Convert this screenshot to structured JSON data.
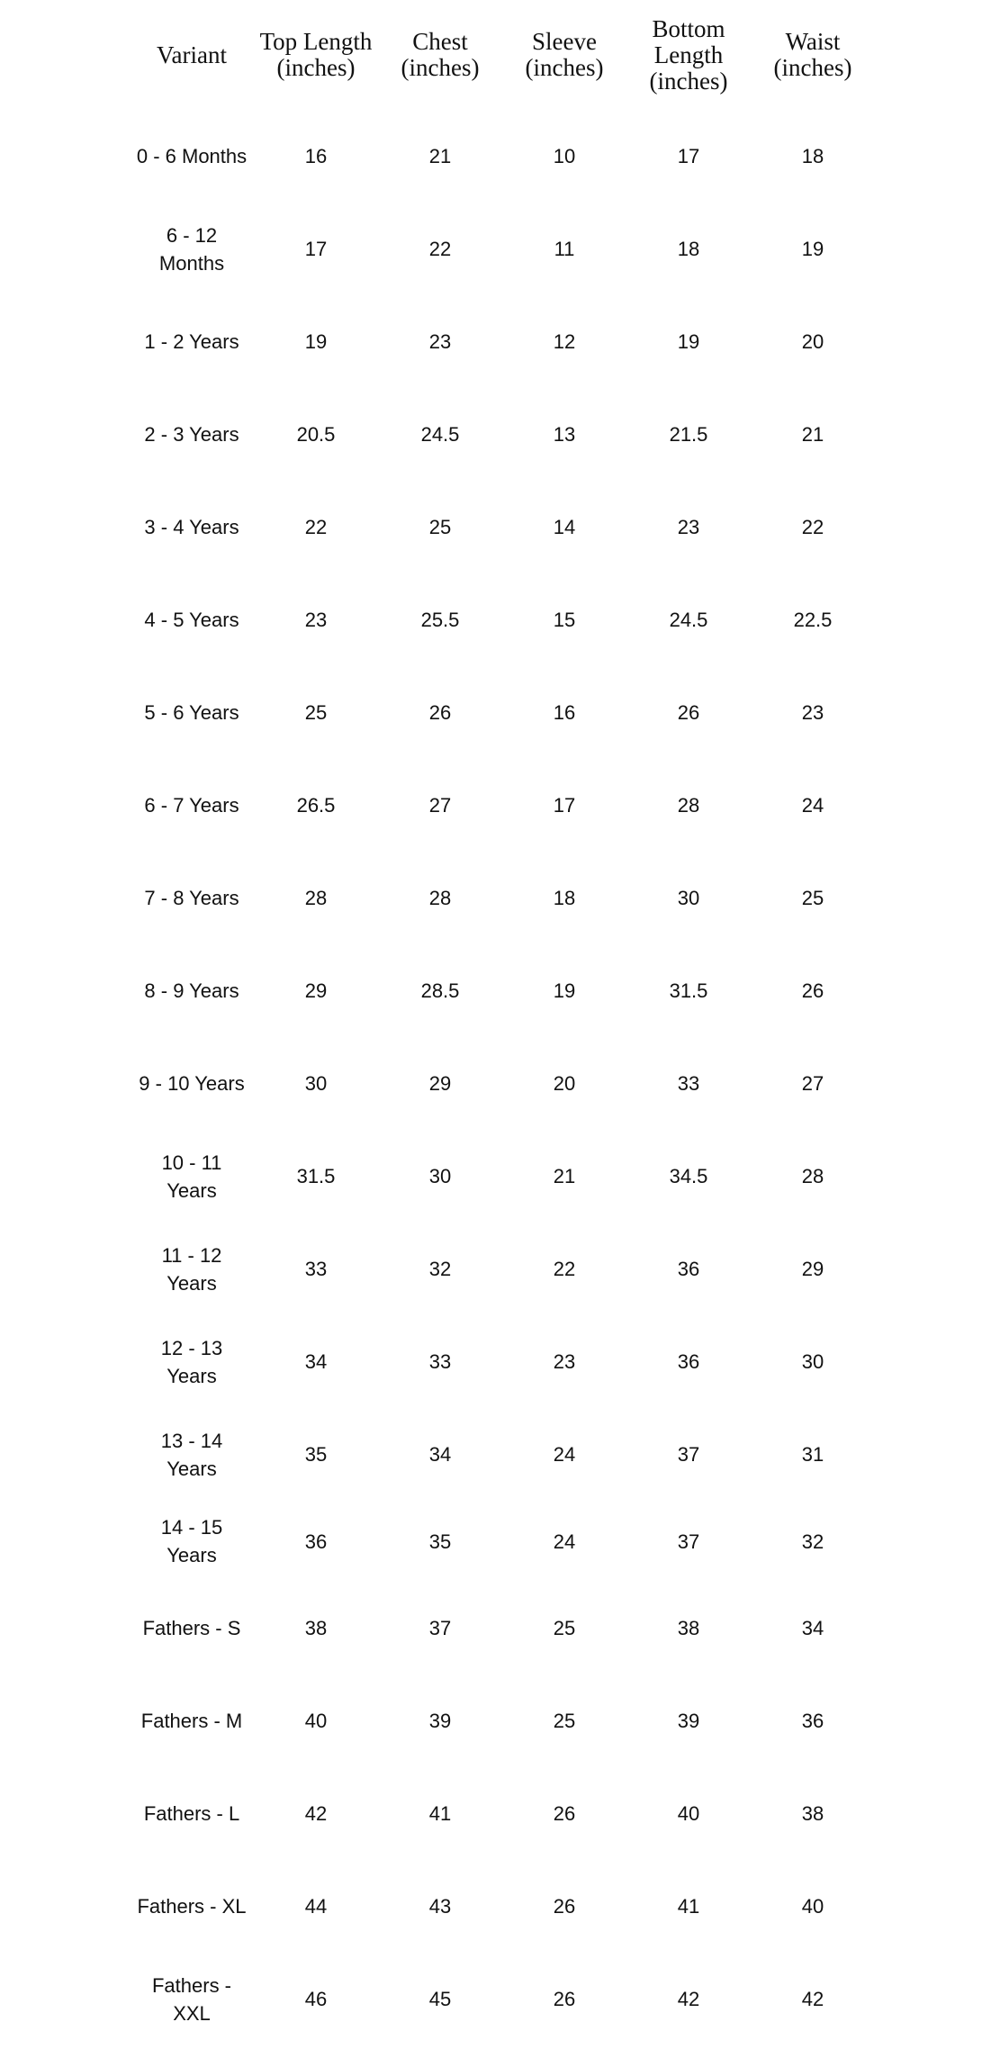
{
  "header_color": "#84d67b",
  "columns": [
    "Variant",
    "Top Length (inches)",
    "Chest (inches)",
    "Sleeve (inches)",
    "Bottom Length (inches)",
    "Waist (inches)"
  ],
  "rows": [
    [
      "0 - 6 Months",
      "16",
      "21",
      "10",
      "17",
      "18"
    ],
    [
      "6 - 12 Months",
      "17",
      "22",
      "11",
      "18",
      "19"
    ],
    [
      "1 - 2 Years",
      "19",
      "23",
      "12",
      "19",
      "20"
    ],
    [
      "2 - 3 Years",
      "20.5",
      "24.5",
      "13",
      "21.5",
      "21"
    ],
    [
      "3 - 4 Years",
      "22",
      "25",
      "14",
      "23",
      "22"
    ],
    [
      "4 - 5 Years",
      "23",
      "25.5",
      "15",
      "24.5",
      "22.5"
    ],
    [
      "5 - 6 Years",
      "25",
      "26",
      "16",
      "26",
      "23"
    ],
    [
      "6 - 7 Years",
      "26.5",
      "27",
      "17",
      "28",
      "24"
    ],
    [
      "7 - 8 Years",
      "28",
      "28",
      "18",
      "30",
      "25"
    ],
    [
      "8 - 9 Years",
      "29",
      "28.5",
      "19",
      "31.5",
      "26"
    ],
    [
      "9 - 10 Years",
      "30",
      "29",
      "20",
      "33",
      "27"
    ],
    [
      "10 - 11 Years",
      "31.5",
      "30",
      "21",
      "34.5",
      "28"
    ],
    [
      "11 - 12 Years",
      "33",
      "32",
      "22",
      "36",
      "29"
    ],
    [
      "12 - 13 Years",
      "34",
      "33",
      "23",
      "36",
      "30"
    ],
    [
      "13 - 14 Years",
      "35",
      "34",
      "24",
      "37",
      "31"
    ],
    [
      "14 - 15 Years",
      "36",
      "35",
      "24",
      "37",
      "32"
    ],
    [
      "Fathers - S",
      "38",
      "37",
      "25",
      "38",
      "34"
    ],
    [
      "Fathers - M",
      "40",
      "39",
      "25",
      "39",
      "36"
    ],
    [
      "Fathers - L",
      "42",
      "41",
      "26",
      "40",
      "38"
    ],
    [
      "Fathers - XL",
      "44",
      "43",
      "26",
      "41",
      "40"
    ],
    [
      "Fathers - XXL",
      "46",
      "45",
      "26",
      "42",
      "42"
    ]
  ]
}
